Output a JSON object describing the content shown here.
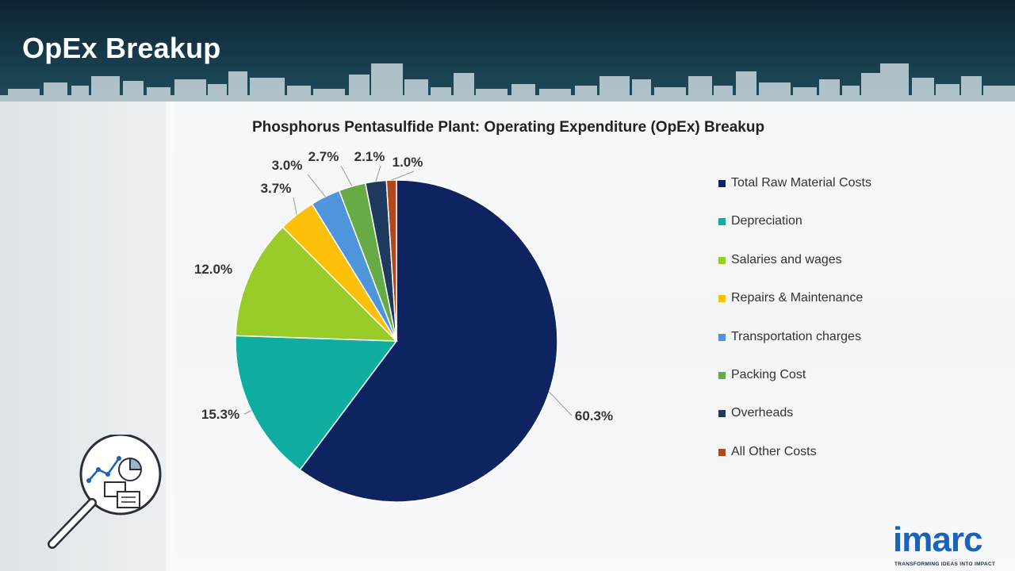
{
  "header": {
    "title": "OpEx Breakup"
  },
  "chart_data": {
    "type": "pie",
    "title": "Phosphorus Pentasulfide Plant: Operating Expenditure (OpEx) Breakup",
    "categories": [
      "Total Raw Material Costs",
      "Depreciation",
      "Salaries and wages",
      "Repairs & Maintenance",
      "Transportation charges",
      "Packing Cost",
      "Overheads",
      "All Other Costs"
    ],
    "values": [
      60.3,
      15.3,
      12.0,
      3.7,
      3.0,
      2.7,
      2.1,
      1.0
    ],
    "data_labels": [
      "60.3%",
      "15.3%",
      "12.0%",
      "3.7%",
      "3.0%",
      "2.7%",
      "2.1%",
      "1.0%"
    ],
    "colors": [
      "#0d2461",
      "#0eada0",
      "#99cc29",
      "#fcbf0a",
      "#4f95db",
      "#66ab45",
      "#20395f",
      "#b0471d"
    ],
    "start_angle": "12 o'clock",
    "direction": "clockwise",
    "legend_position": "right"
  },
  "branding": {
    "logo_text": "imarc",
    "logo_tagline": "TRANSFORMING IDEAS INTO IMPACT",
    "logo_color": "#1a63b8"
  },
  "decor": {
    "magnifier_icon": "magnifier-analytics-icon"
  }
}
